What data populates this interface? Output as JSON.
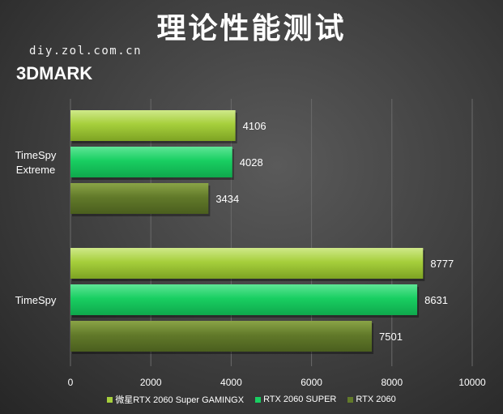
{
  "title": "理论性能测试",
  "watermark": "diy.zol.com.cn",
  "subtitle": "3DMARK",
  "colors": {
    "series1": "#a6cf3c",
    "series2": "#19cf62",
    "series3": "#627a2a",
    "grid": "#6a6a6a"
  },
  "chart_data": {
    "type": "bar",
    "orientation": "horizontal",
    "categories": [
      "TimeSpy Extreme",
      "TimeSpy"
    ],
    "category_labels": [
      [
        "TimeSpy",
        "Extreme"
      ],
      [
        "TimeSpy"
      ]
    ],
    "series": [
      {
        "name": "微星RTX 2060 Super GAMINGX",
        "values": [
          4106,
          8777
        ]
      },
      {
        "name": "RTX 2060 SUPER",
        "values": [
          4028,
          8631
        ]
      },
      {
        "name": "RTX 2060",
        "values": [
          3434,
          7501
        ]
      }
    ],
    "xlim": [
      0,
      10000
    ],
    "xticks": [
      0,
      2000,
      4000,
      6000,
      8000,
      10000
    ],
    "grid": true,
    "legend_position": "bottom"
  }
}
